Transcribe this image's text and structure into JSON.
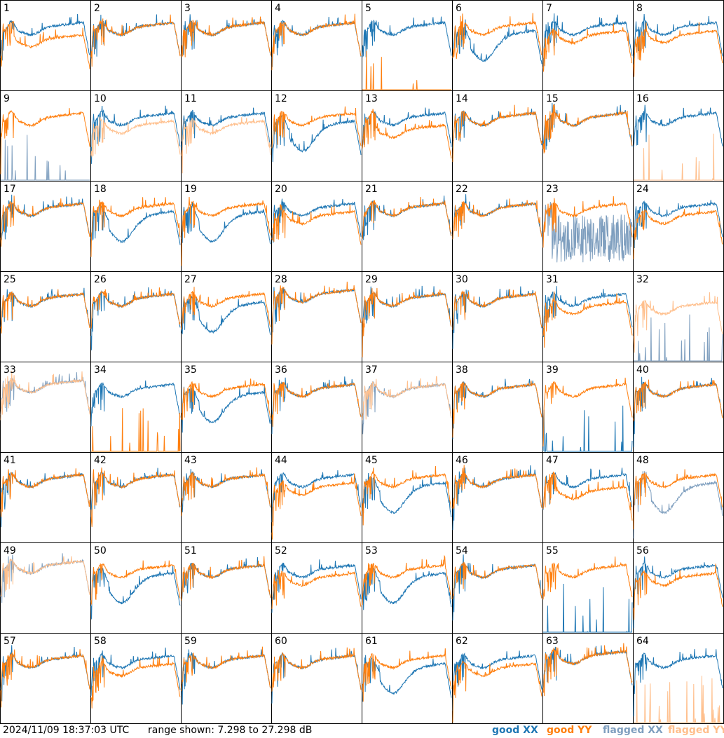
{
  "footer": {
    "timestamp": "2024/11/09 18:37:03 UTC",
    "range_text": "range shown: 7.298 to 27.298 dB",
    "legend": [
      "good XX",
      "good YY",
      "flagged XX",
      "flagged YY"
    ]
  },
  "colors": {
    "good_xx": "#1f77b4",
    "good_yy": "#ff7f0e",
    "flagged_xx": "#7f9fbf",
    "flagged_yy": "#ffbf8c",
    "grid_line": "#000000"
  },
  "chart_data": {
    "type": "line",
    "layout": "small-multiples 8x8",
    "ylim": [
      7.298,
      27.298
    ],
    "yunit": "dB",
    "panels": [
      {
        "id": "1",
        "xx": "good",
        "yy": "good",
        "shape": "drop"
      },
      {
        "id": "2",
        "xx": "good",
        "yy": "good",
        "shape": "normal"
      },
      {
        "id": "3",
        "xx": "good",
        "yy": "good",
        "shape": "normal"
      },
      {
        "id": "4",
        "xx": "good",
        "yy": "good",
        "shape": "normal"
      },
      {
        "id": "5",
        "xx": "good",
        "yy": "good",
        "shape": "yy_dead"
      },
      {
        "id": "6",
        "xx": "good",
        "yy": "good",
        "shape": "xx_low"
      },
      {
        "id": "7",
        "xx": "good",
        "yy": "good",
        "shape": "split"
      },
      {
        "id": "8",
        "xx": "good",
        "yy": "good",
        "shape": "split"
      },
      {
        "id": "9",
        "xx": "flagged",
        "yy": "good",
        "shape": "xx_dead"
      },
      {
        "id": "10",
        "xx": "good",
        "yy": "flagged",
        "shape": "split"
      },
      {
        "id": "11",
        "xx": "good",
        "yy": "flagged",
        "shape": "split"
      },
      {
        "id": "12",
        "xx": "good",
        "yy": "good",
        "shape": "xx_low"
      },
      {
        "id": "13",
        "xx": "good",
        "yy": "good",
        "shape": "drop"
      },
      {
        "id": "14",
        "xx": "good",
        "yy": "good",
        "shape": "normal"
      },
      {
        "id": "15",
        "xx": "good",
        "yy": "good",
        "shape": "normal"
      },
      {
        "id": "16",
        "xx": "good",
        "yy": "flagged",
        "shape": "yy_dead"
      },
      {
        "id": "17",
        "xx": "good",
        "yy": "good",
        "shape": "normal"
      },
      {
        "id": "18",
        "xx": "good",
        "yy": "good",
        "shape": "xx_low"
      },
      {
        "id": "19",
        "xx": "good",
        "yy": "good",
        "shape": "xx_low"
      },
      {
        "id": "20",
        "xx": "good",
        "yy": "good",
        "shape": "split"
      },
      {
        "id": "21",
        "xx": "good",
        "yy": "good",
        "shape": "normal"
      },
      {
        "id": "22",
        "xx": "good",
        "yy": "good",
        "shape": "normal"
      },
      {
        "id": "23",
        "xx": "flagged",
        "yy": "good",
        "shape": "xx_noise"
      },
      {
        "id": "24",
        "xx": "good",
        "yy": "good",
        "shape": "split"
      },
      {
        "id": "25",
        "xx": "good",
        "yy": "good",
        "shape": "normal"
      },
      {
        "id": "26",
        "xx": "good",
        "yy": "good",
        "shape": "normal"
      },
      {
        "id": "27",
        "xx": "good",
        "yy": "good",
        "shape": "xx_low"
      },
      {
        "id": "28",
        "xx": "good",
        "yy": "good",
        "shape": "flat"
      },
      {
        "id": "29",
        "xx": "good",
        "yy": "good",
        "shape": "normal"
      },
      {
        "id": "30",
        "xx": "good",
        "yy": "good",
        "shape": "normal"
      },
      {
        "id": "31",
        "xx": "good",
        "yy": "good",
        "shape": "split"
      },
      {
        "id": "32",
        "xx": "flagged",
        "yy": "flagged",
        "shape": "yy_only"
      },
      {
        "id": "33",
        "xx": "flagged",
        "yy": "flagged",
        "shape": "flat"
      },
      {
        "id": "34",
        "xx": "good",
        "yy": "good",
        "shape": "yy_dead"
      },
      {
        "id": "35",
        "xx": "good",
        "yy": "good",
        "shape": "xx_low"
      },
      {
        "id": "36",
        "xx": "good",
        "yy": "good",
        "shape": "normal"
      },
      {
        "id": "37",
        "xx": "flagged",
        "yy": "flagged",
        "shape": "normal"
      },
      {
        "id": "38",
        "xx": "good",
        "yy": "good",
        "shape": "normal"
      },
      {
        "id": "39",
        "xx": "good",
        "yy": "good",
        "shape": "xx_dead"
      },
      {
        "id": "40",
        "xx": "good",
        "yy": "good",
        "shape": "normal"
      },
      {
        "id": "41",
        "xx": "good",
        "yy": "good",
        "shape": "normal"
      },
      {
        "id": "42",
        "xx": "good",
        "yy": "good",
        "shape": "normal"
      },
      {
        "id": "43",
        "xx": "good",
        "yy": "good",
        "shape": "normal"
      },
      {
        "id": "44",
        "xx": "good",
        "yy": "good",
        "shape": "split"
      },
      {
        "id": "45",
        "xx": "good",
        "yy": "good",
        "shape": "xx_low"
      },
      {
        "id": "46",
        "xx": "good",
        "yy": "good",
        "shape": "normal"
      },
      {
        "id": "47",
        "xx": "good",
        "yy": "good",
        "shape": "drop"
      },
      {
        "id": "48",
        "xx": "flagged",
        "yy": "good",
        "shape": "xx_low"
      },
      {
        "id": "49",
        "xx": "flagged",
        "yy": "flagged",
        "shape": "flat"
      },
      {
        "id": "50",
        "xx": "good",
        "yy": "good",
        "shape": "xx_low"
      },
      {
        "id": "51",
        "xx": "good",
        "yy": "good",
        "shape": "normal"
      },
      {
        "id": "52",
        "xx": "good",
        "yy": "good",
        "shape": "split"
      },
      {
        "id": "53",
        "xx": "good",
        "yy": "good",
        "shape": "xx_low"
      },
      {
        "id": "54",
        "xx": "good",
        "yy": "good",
        "shape": "normal"
      },
      {
        "id": "55",
        "xx": "good",
        "yy": "good",
        "shape": "xx_dead"
      },
      {
        "id": "56",
        "xx": "good",
        "yy": "good",
        "shape": "split"
      },
      {
        "id": "57",
        "xx": "good",
        "yy": "good",
        "shape": "normal"
      },
      {
        "id": "58",
        "xx": "good",
        "yy": "good",
        "shape": "split"
      },
      {
        "id": "59",
        "xx": "good",
        "yy": "good",
        "shape": "normal"
      },
      {
        "id": "60",
        "xx": "good",
        "yy": "good",
        "shape": "normal"
      },
      {
        "id": "61",
        "xx": "good",
        "yy": "good",
        "shape": "xx_low"
      },
      {
        "id": "62",
        "xx": "good",
        "yy": "good",
        "shape": "split"
      },
      {
        "id": "63",
        "xx": "good",
        "yy": "good",
        "shape": "flat"
      },
      {
        "id": "64",
        "xx": "good",
        "yy": "flagged",
        "shape": "yy_dead"
      }
    ]
  }
}
